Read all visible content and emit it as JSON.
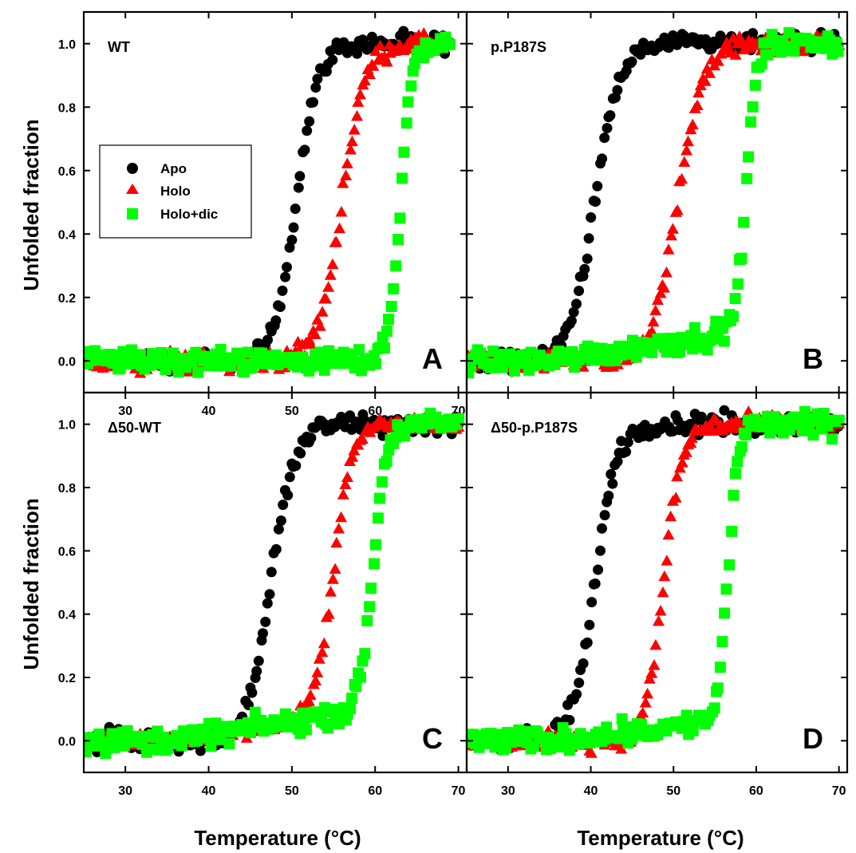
{
  "chart_data": {
    "type": "scatter",
    "xlabel": "Temperature (°C)",
    "ylabel": "Unfolded fraction",
    "ylim": [
      -0.1,
      1.1
    ],
    "yticks": [
      "0.0",
      "0.2",
      "0.4",
      "0.6",
      "0.8",
      "1.0"
    ],
    "legend": {
      "placement": "left, upper-middle of panel A",
      "entries": [
        {
          "label": "Apo",
          "color": "#000000",
          "marker": "circle"
        },
        {
          "label": "Holo",
          "color": "#ff0000",
          "marker": "triangle"
        },
        {
          "label": "Holo+dic",
          "color": "#00ff00",
          "marker": "square"
        }
      ]
    },
    "panels": [
      {
        "id": "A",
        "title": "WT",
        "letter": "A",
        "xlim": [
          25,
          71
        ],
        "xticks": [
          "30",
          "40",
          "50",
          "60",
          "70"
        ],
        "series": [
          {
            "name": "Apo",
            "tm": 50.5,
            "width": 1.3,
            "x_start": 25,
            "x_end": 69,
            "base_slope": 0.0,
            "noise": 0.025
          },
          {
            "name": "Holo",
            "tm": 56.0,
            "width": 1.4,
            "x_start": 25,
            "x_end": 69,
            "base_slope": 0.0,
            "noise": 0.025
          },
          {
            "name": "Holo+dic",
            "tm": 63.0,
            "width": 0.7,
            "x_start": 25,
            "x_end": 69,
            "base_slope": 0.0,
            "noise": 0.03
          }
        ]
      },
      {
        "id": "B",
        "title": "p.P187S",
        "letter": "B",
        "xlim": [
          25,
          71
        ],
        "xticks": [],
        "series": [
          {
            "name": "Apo",
            "tm": 40.5,
            "width": 1.5,
            "x_start": 25,
            "x_end": 70,
            "base_slope": 0.0,
            "noise": 0.025
          },
          {
            "name": "Holo",
            "tm": 50.5,
            "width": 1.5,
            "x_start": 25,
            "x_end": 70,
            "base_slope": 0.0,
            "noise": 0.025
          },
          {
            "name": "Holo+dic",
            "tm": 58.8,
            "width": 0.6,
            "x_start": 25,
            "x_end": 70,
            "base_slope": 0.004,
            "noise": 0.03
          }
        ]
      },
      {
        "id": "C",
        "title": "Δ50-WT",
        "letter": "C",
        "xlim": [
          25,
          71
        ],
        "xticks": [
          "30",
          "40",
          "50",
          "60",
          "70"
        ],
        "series": [
          {
            "name": "Apo",
            "tm": 47.5,
            "width": 1.4,
            "x_start": 25,
            "x_end": 70,
            "base_slope": 0.0,
            "noise": 0.03
          },
          {
            "name": "Holo",
            "tm": 55.0,
            "width": 1.1,
            "x_start": 25,
            "x_end": 70,
            "base_slope": 0.004,
            "noise": 0.02
          },
          {
            "name": "Holo+dic",
            "tm": 59.8,
            "width": 0.8,
            "x_start": 25,
            "x_end": 70,
            "base_slope": 0.004,
            "noise": 0.03
          }
        ]
      },
      {
        "id": "D",
        "title": "Δ50-p.P187S",
        "letter": "D",
        "xlim": [
          25,
          71
        ],
        "xticks": [
          "30",
          "40",
          "50",
          "60",
          "70"
        ],
        "series": [
          {
            "name": "Apo",
            "tm": 40.5,
            "width": 1.3,
            "x_start": 25,
            "x_end": 70,
            "base_slope": 0.0,
            "noise": 0.03
          },
          {
            "name": "Holo",
            "tm": 48.8,
            "width": 1.1,
            "x_start": 25,
            "x_end": 70,
            "base_slope": 0.0,
            "noise": 0.025
          },
          {
            "name": "Holo+dic",
            "tm": 56.6,
            "width": 0.6,
            "x_start": 25,
            "x_end": 70,
            "base_slope": 0.003,
            "noise": 0.03
          }
        ]
      }
    ]
  }
}
